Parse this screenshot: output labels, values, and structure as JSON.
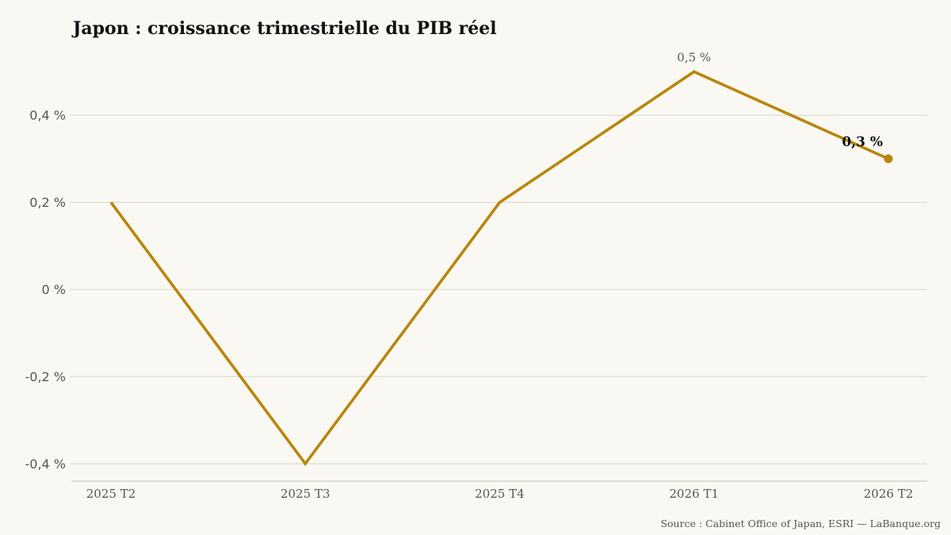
{
  "colors": {
    "background": "#FAF8F2",
    "line": "#B8860B",
    "grid": "#DDD6CB",
    "axis": "#C8C1B5",
    "text_muted": "#555555",
    "text_strong": "#111111"
  },
  "source": "Source : Cabinet Office of Japan, ESRI — LaBanque.org",
  "chart_data": {
    "type": "line",
    "title": "Japon : croissance trimestrielle du PIB réel",
    "categories": [
      "2025 T2",
      "2025 T3",
      "2025 T4",
      "2026 T1",
      "2026 T2"
    ],
    "series": [
      {
        "values": [
          0.2,
          -0.4,
          0.2,
          0.5,
          0.3
        ],
        "data_labels": [
          null,
          null,
          null,
          "0,5 %",
          "0,3 %"
        ]
      }
    ],
    "yticks": [
      0.4,
      0.2,
      0,
      -0.2,
      -0.4
    ],
    "ytick_labels": [
      "0,4 %",
      "0,2 %",
      "0 %",
      "-0,2 %",
      "-0,4 %"
    ],
    "ylim": [
      -0.44,
      0.55
    ],
    "grid": true,
    "highlight_last": true
  }
}
